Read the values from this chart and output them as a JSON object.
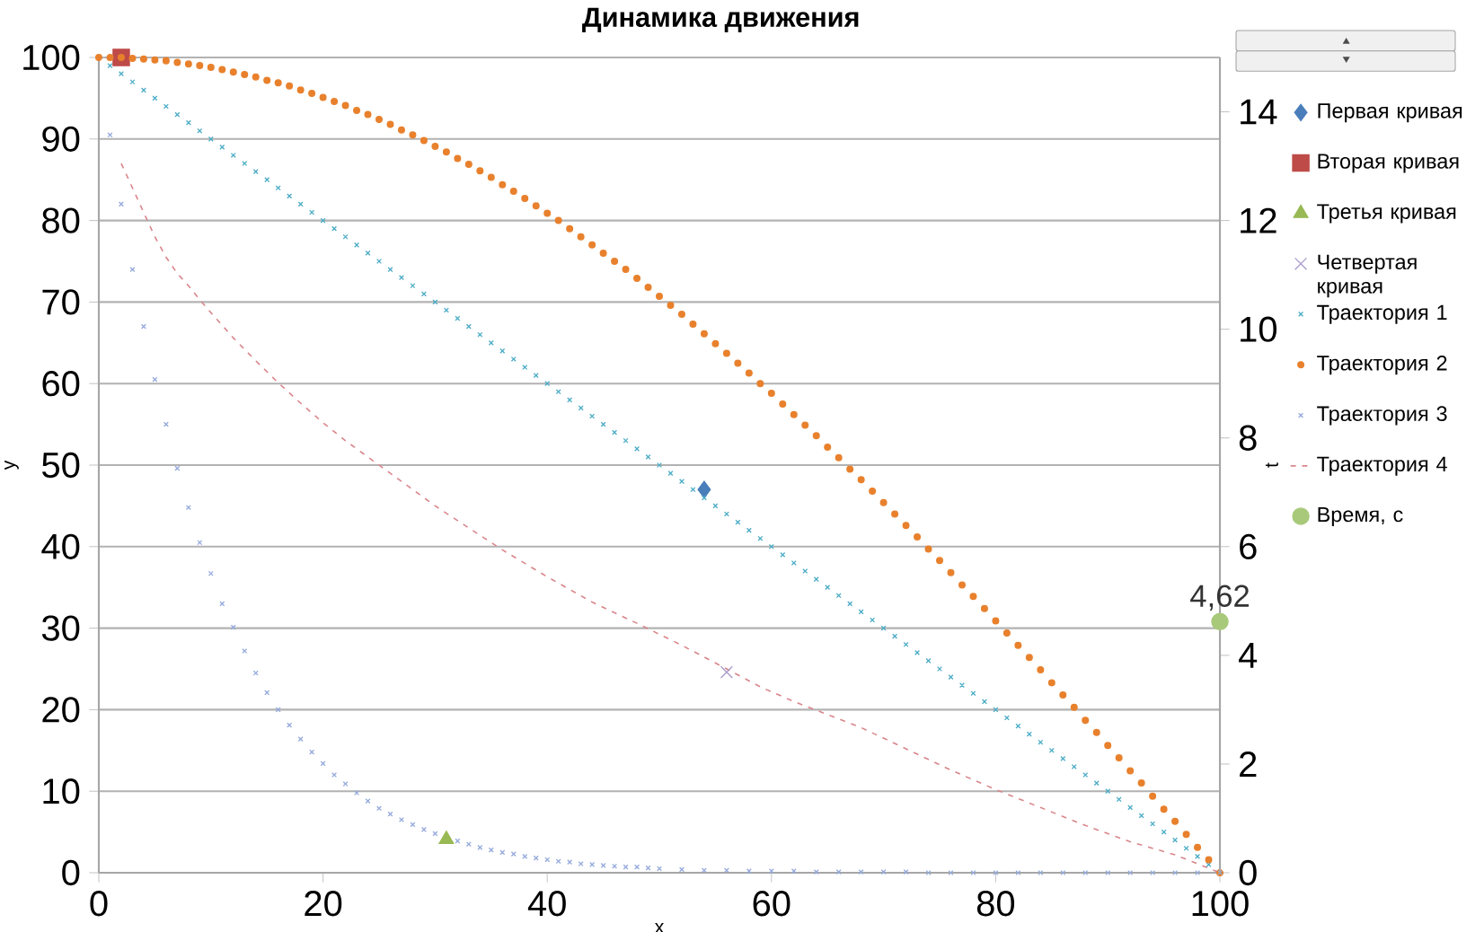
{
  "chart_data": {
    "type": "scatter",
    "title": "Динамика движения",
    "xlabel": "x",
    "ylabel": "y",
    "y2label": "t",
    "xlim": [
      0,
      100
    ],
    "ylim": [
      0,
      100
    ],
    "y2lim": [
      0,
      15
    ],
    "xticks": [
      0,
      20,
      40,
      60,
      80,
      100
    ],
    "yticks": [
      0,
      10,
      20,
      30,
      40,
      50,
      60,
      70,
      80,
      90,
      100
    ],
    "y2ticks": [
      0,
      2,
      4,
      6,
      8,
      10,
      12,
      14
    ],
    "grid": "y",
    "legend": "right",
    "x": [
      0,
      1,
      2,
      3,
      4,
      5,
      6,
      7,
      8,
      9,
      10,
      11,
      12,
      13,
      14,
      15,
      16,
      17,
      18,
      19,
      20,
      21,
      22,
      23,
      24,
      25,
      26,
      27,
      28,
      29,
      30,
      31,
      32,
      33,
      34,
      35,
      36,
      37,
      38,
      39,
      40,
      41,
      42,
      43,
      44,
      45,
      46,
      47,
      48,
      49,
      50,
      51,
      52,
      53,
      54,
      55,
      56,
      57,
      58,
      59,
      60,
      61,
      62,
      63,
      64,
      65,
      66,
      67,
      68,
      69,
      70,
      71,
      72,
      73,
      74,
      75,
      76,
      77,
      78,
      79,
      80,
      81,
      82,
      83,
      84,
      85,
      86,
      87,
      88,
      89,
      90,
      91,
      92,
      93,
      94,
      95,
      96,
      97,
      98,
      99,
      100
    ],
    "series": [
      {
        "name": "Первая кривая",
        "color": "#4a7ebb",
        "marker": "diamond",
        "x": [
          54
        ],
        "values": [
          47
        ]
      },
      {
        "name": "Вторая кривая",
        "color": "#be4b48",
        "marker": "square",
        "x": [
          2
        ],
        "values": [
          100
        ]
      },
      {
        "name": "Третья кривая",
        "color": "#98b954",
        "marker": "triangle",
        "x": [
          31
        ],
        "values": [
          4.1
        ]
      },
      {
        "name": "Четвертая кривая",
        "color": "#a99bc9",
        "marker": "cross",
        "x": [
          56
        ],
        "values": [
          24.6
        ]
      },
      {
        "name": "Траектория 1",
        "color": "#4bacc6",
        "marker": "cross",
        "values": [
          null,
          99,
          98,
          97,
          96,
          95,
          94,
          93,
          92,
          91,
          90,
          89,
          88,
          87,
          86,
          85,
          84,
          83,
          82,
          81,
          80,
          79,
          78,
          77,
          76,
          75,
          74,
          73,
          72,
          71,
          70,
          69,
          68,
          67,
          66,
          65,
          64,
          63,
          62,
          61,
          60,
          59,
          58,
          57,
          56,
          55,
          54,
          53,
          52,
          51,
          50,
          49,
          48,
          47,
          46,
          45,
          44,
          43,
          42,
          41,
          40,
          39,
          38,
          37,
          36,
          35,
          34,
          33,
          32,
          31,
          30,
          29,
          28,
          27,
          26,
          25,
          24,
          23,
          22,
          21,
          20,
          19,
          18,
          17,
          16,
          15,
          14,
          13,
          12,
          11,
          10,
          9,
          8,
          7,
          6,
          5,
          4,
          3,
          2,
          1,
          null
        ]
      },
      {
        "name": "Траектория 2",
        "color": "#e8802c",
        "marker": "circle",
        "values": [
          100,
          100,
          100,
          99.9,
          99.8,
          99.7,
          99.6,
          99.4,
          99.2,
          99,
          98.8,
          98.5,
          98.2,
          97.9,
          97.6,
          97.2,
          96.9,
          96.5,
          96,
          95.6,
          95.1,
          94.6,
          94.1,
          93.5,
          93,
          92.4,
          91.8,
          91.1,
          90.5,
          89.8,
          89.1,
          88.4,
          87.6,
          86.9,
          86.1,
          85.3,
          84.4,
          83.6,
          82.7,
          81.8,
          80.9,
          80,
          79,
          78,
          77,
          76,
          75,
          74,
          72.9,
          71.8,
          70.7,
          69.6,
          68.5,
          67.3,
          66.1,
          64.9,
          63.7,
          62.5,
          61.3,
          60,
          58.8,
          57.5,
          56.2,
          54.9,
          53.6,
          52.2,
          50.9,
          49.5,
          48.2,
          46.8,
          45.4,
          44,
          42.6,
          41.2,
          39.7,
          38.3,
          36.8,
          35.3,
          33.9,
          32.4,
          30.9,
          29.4,
          27.9,
          26.4,
          24.9,
          23.3,
          21.8,
          20.3,
          18.7,
          17.2,
          15.6,
          14.1,
          12.5,
          11,
          9.4,
          7.8,
          6.3,
          4.7,
          3.1,
          1.6,
          0
        ]
      },
      {
        "name": "Траектория 3",
        "color": "#94a9dc",
        "marker": "cross",
        "x": [
          1,
          2,
          3,
          4,
          5,
          6,
          7,
          8,
          9,
          10,
          11,
          12,
          13,
          14,
          15,
          16,
          17,
          18,
          19,
          20,
          21,
          22,
          23,
          24,
          25,
          26,
          27,
          28,
          29,
          30,
          32,
          33,
          34,
          35,
          36,
          37,
          38,
          39,
          40,
          41,
          42,
          43,
          44,
          45,
          46,
          47,
          48,
          49,
          50,
          52,
          54,
          56,
          58,
          60,
          62,
          64,
          66,
          68,
          70,
          72,
          74,
          76,
          78,
          80,
          82,
          84,
          86,
          88,
          90,
          92,
          94,
          96,
          98,
          100
        ],
        "values": [
          90.5,
          82,
          74,
          67,
          60.5,
          55,
          49.6,
          44.8,
          40.5,
          36.7,
          33,
          30.1,
          27.2,
          24.5,
          22.1,
          20,
          18.1,
          16.4,
          14.8,
          13.4,
          12,
          10.9,
          9.8,
          8.8,
          7.9,
          7.2,
          6.5,
          5.9,
          5.3,
          4.8,
          3.9,
          3.5,
          3.1,
          2.8,
          2.5,
          2.3,
          2,
          1.8,
          1.6,
          1.4,
          1.3,
          1.1,
          1,
          0.9,
          0.8,
          0.7,
          0.7,
          0.6,
          0.5,
          0.4,
          0.3,
          0.3,
          0.2,
          0.2,
          0.2,
          0.1,
          0.1,
          0.1,
          0.1,
          0.1,
          0,
          0,
          0,
          0,
          0,
          0,
          0,
          0,
          0,
          0,
          0,
          0,
          0,
          0
        ]
      },
      {
        "name": "Траектория 4",
        "color": "#d9868b",
        "type": "line",
        "marker": "none",
        "line_style": "dashed",
        "x": [
          2,
          3,
          4,
          5,
          6,
          7,
          8,
          9,
          10,
          12,
          14,
          16,
          18,
          20,
          22,
          24,
          27,
          30,
          33,
          36,
          40,
          44,
          48,
          52,
          56,
          59,
          62,
          65,
          68,
          72,
          76,
          80,
          84,
          88,
          92,
          96,
          100
        ],
        "values": [
          87,
          84,
          81,
          78,
          75.5,
          73.5,
          72,
          70.3,
          68.7,
          65.6,
          62.8,
          60.1,
          57.6,
          55.2,
          53,
          51,
          48,
          45,
          42.3,
          39.6,
          36.3,
          33.2,
          30.6,
          27.9,
          25,
          22.8,
          21,
          19.4,
          17.8,
          15.2,
          12.6,
          10.2,
          8,
          5.8,
          3.8,
          2.2,
          0
        ]
      },
      {
        "name": "Время, с",
        "color": "#a9c97a",
        "marker": "circle",
        "axis": "y2",
        "x": [
          100
        ],
        "values": [
          4.62
        ],
        "value_labels": [
          "4,62"
        ]
      }
    ]
  }
}
